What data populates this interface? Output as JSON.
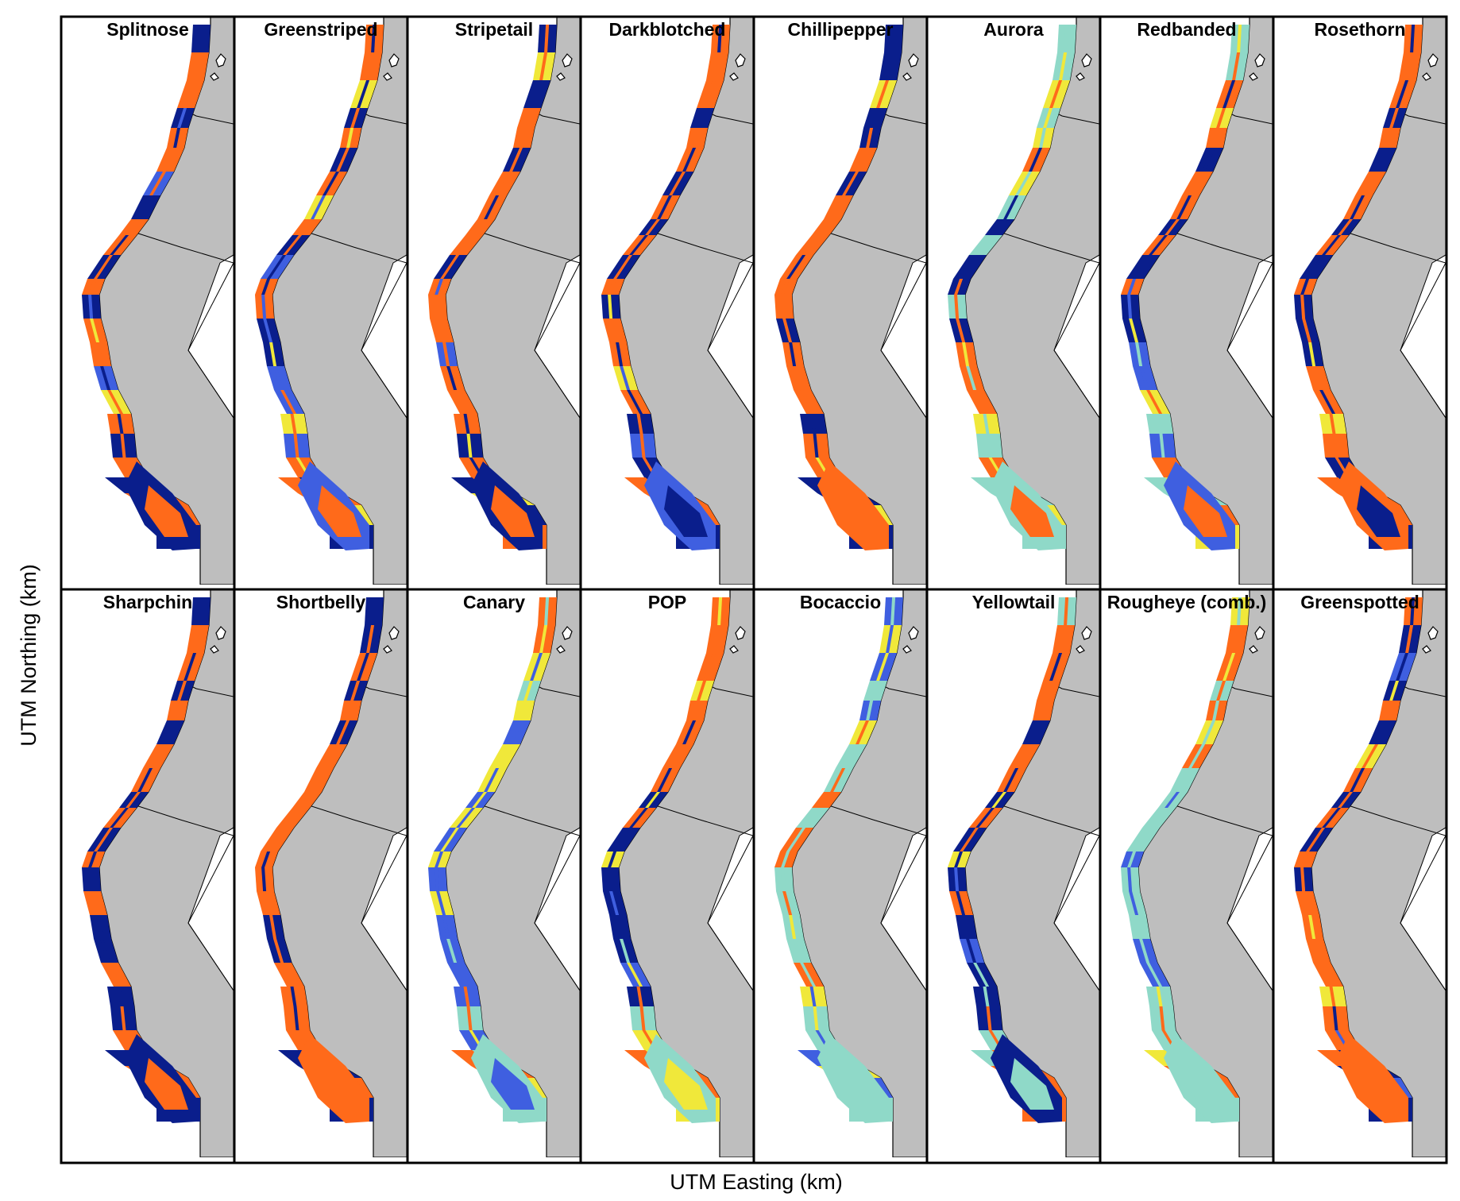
{
  "figure": {
    "x_axis_label": "UTM Easting (km)",
    "y_axis_label": "UTM Northing (km)"
  },
  "panels": [
    {
      "title": "Splitnose",
      "pattern": [
        0,
        2,
        2,
        0,
        2,
        2,
        1,
        0,
        2,
        2,
        0,
        2,
        0,
        2,
        2,
        1,
        3,
        2,
        0,
        2
      ]
    },
    {
      "title": "Greenstriped",
      "pattern": [
        2,
        2,
        3,
        0,
        2,
        0,
        2,
        3,
        2,
        0,
        1,
        2,
        2,
        0,
        0,
        1,
        1,
        3,
        1,
        2
      ]
    },
    {
      "title": "Stripetail",
      "pattern": [
        0,
        3,
        0,
        2,
        2,
        0,
        2,
        2,
        2,
        2,
        0,
        2,
        2,
        2,
        1,
        2,
        2,
        2,
        0,
        2
      ]
    },
    {
      "title": "Darkblotched",
      "pattern": [
        2,
        2,
        2,
        0,
        2,
        2,
        0,
        2,
        0,
        2,
        0,
        2,
        0,
        2,
        2,
        3,
        2,
        0,
        1,
        0
      ]
    },
    {
      "title": "Chillipepper",
      "pattern": [
        0,
        0,
        3,
        0,
        0,
        2,
        0,
        2,
        2,
        2,
        2,
        2,
        2,
        0,
        2,
        2,
        2,
        0,
        2,
        2
      ]
    },
    {
      "title": "Aurora",
      "pattern": [
        4,
        4,
        3,
        4,
        3,
        2,
        3,
        4,
        0,
        4,
        0,
        0,
        4,
        0,
        2,
        2,
        2,
        3,
        4,
        2
      ]
    },
    {
      "title": "Redbanded",
      "pattern": [
        4,
        4,
        2,
        3,
        2,
        0,
        2,
        2,
        0,
        2,
        0,
        2,
        0,
        0,
        1,
        1,
        3,
        4,
        1,
        2
      ]
    },
    {
      "title": "Rosethorn",
      "pattern": [
        2,
        2,
        2,
        0,
        2,
        0,
        2,
        2,
        0,
        2,
        0,
        2,
        0,
        0,
        0,
        2,
        2,
        3,
        2,
        0
      ]
    },
    {
      "title": "Sharpchin",
      "pattern": [
        0,
        2,
        2,
        0,
        2,
        0,
        2,
        2,
        0,
        2,
        0,
        2,
        0,
        2,
        0,
        0,
        2,
        0,
        0,
        2
      ]
    },
    {
      "title": "Shortbelly",
      "pattern": [
        0,
        0,
        2,
        0,
        2,
        0,
        2,
        2,
        2,
        2,
        2,
        2,
        2,
        2,
        0,
        0,
        2,
        2,
        2,
        2
      ]
    },
    {
      "title": "Canary",
      "pattern": [
        2,
        2,
        3,
        4,
        3,
        1,
        3,
        3,
        1,
        3,
        1,
        3,
        1,
        3,
        1,
        1,
        1,
        1,
        4,
        1
      ]
    },
    {
      "title": "POP",
      "pattern": [
        2,
        2,
        2,
        3,
        2,
        2,
        2,
        2,
        0,
        2,
        0,
        3,
        0,
        0,
        0,
        0,
        1,
        0,
        4,
        3
      ]
    },
    {
      "title": "Bocaccio",
      "pattern": [
        1,
        3,
        1,
        4,
        1,
        3,
        4,
        4,
        2,
        4,
        2,
        2,
        4,
        4,
        4,
        4,
        2,
        3,
        4,
        4
      ]
    },
    {
      "title": "Yellowtail",
      "pattern": [
        4,
        2,
        2,
        2,
        2,
        0,
        2,
        2,
        0,
        2,
        0,
        3,
        0,
        2,
        0,
        1,
        0,
        0,
        0,
        4
      ]
    },
    {
      "title": "Rougheye (comb.)",
      "pattern": [
        3,
        2,
        2,
        4,
        2,
        3,
        2,
        4,
        4,
        4,
        4,
        1,
        4,
        4,
        4,
        1,
        1,
        4,
        4,
        4
      ]
    },
    {
      "title": "Greenspotted",
      "pattern": [
        2,
        0,
        1,
        0,
        2,
        0,
        3,
        2,
        0,
        2,
        0,
        2,
        0,
        2,
        2,
        2,
        2,
        3,
        2,
        2
      ]
    }
  ],
  "colors": {
    "dark_blue": "#0a1e8c",
    "mid_blue": "#3f5fe0",
    "orange": "#ff6a1a",
    "yellow": "#f0e83a",
    "teal": "#8fd9c8",
    "land": "#bebebe",
    "frame": "#000000"
  }
}
